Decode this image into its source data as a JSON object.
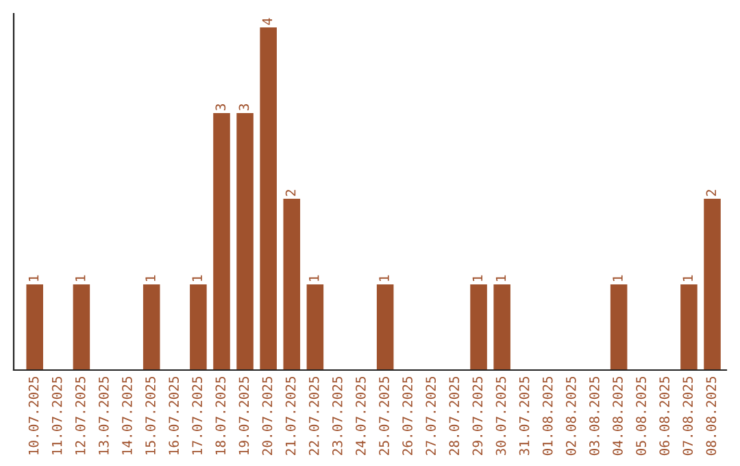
{
  "chart_data": {
    "type": "bar",
    "categories": [
      "10.07.2025",
      "11.07.2025",
      "12.07.2025",
      "13.07.2025",
      "14.07.2025",
      "15.07.2025",
      "16.07.2025",
      "17.07.2025",
      "18.07.2025",
      "19.07.2025",
      "20.07.2025",
      "21.07.2025",
      "22.07.2025",
      "23.07.2025",
      "24.07.2025",
      "25.07.2025",
      "26.07.2025",
      "27.07.2025",
      "28.07.2025",
      "29.07.2025",
      "30.07.2025",
      "31.07.2025",
      "01.08.2025",
      "02.08.2025",
      "03.08.2025",
      "04.08.2025",
      "05.08.2025",
      "06.08.2025",
      "07.08.2025",
      "08.08.2025"
    ],
    "values": [
      1,
      0,
      1,
      0,
      0,
      1,
      0,
      1,
      3,
      3,
      4,
      2,
      1,
      0,
      0,
      1,
      0,
      0,
      0,
      1,
      1,
      0,
      0,
      0,
      0,
      1,
      0,
      0,
      1,
      2
    ],
    "color": "#a0522d",
    "value_labels": [
      "1",
      null,
      "1",
      null,
      null,
      "1",
      null,
      "1",
      "3",
      "3",
      "4",
      "2",
      "1",
      null,
      null,
      "1",
      null,
      null,
      null,
      "1",
      "1",
      null,
      null,
      null,
      null,
      "1",
      null,
      null,
      "1",
      "2"
    ],
    "grid": false,
    "legend": false
  }
}
